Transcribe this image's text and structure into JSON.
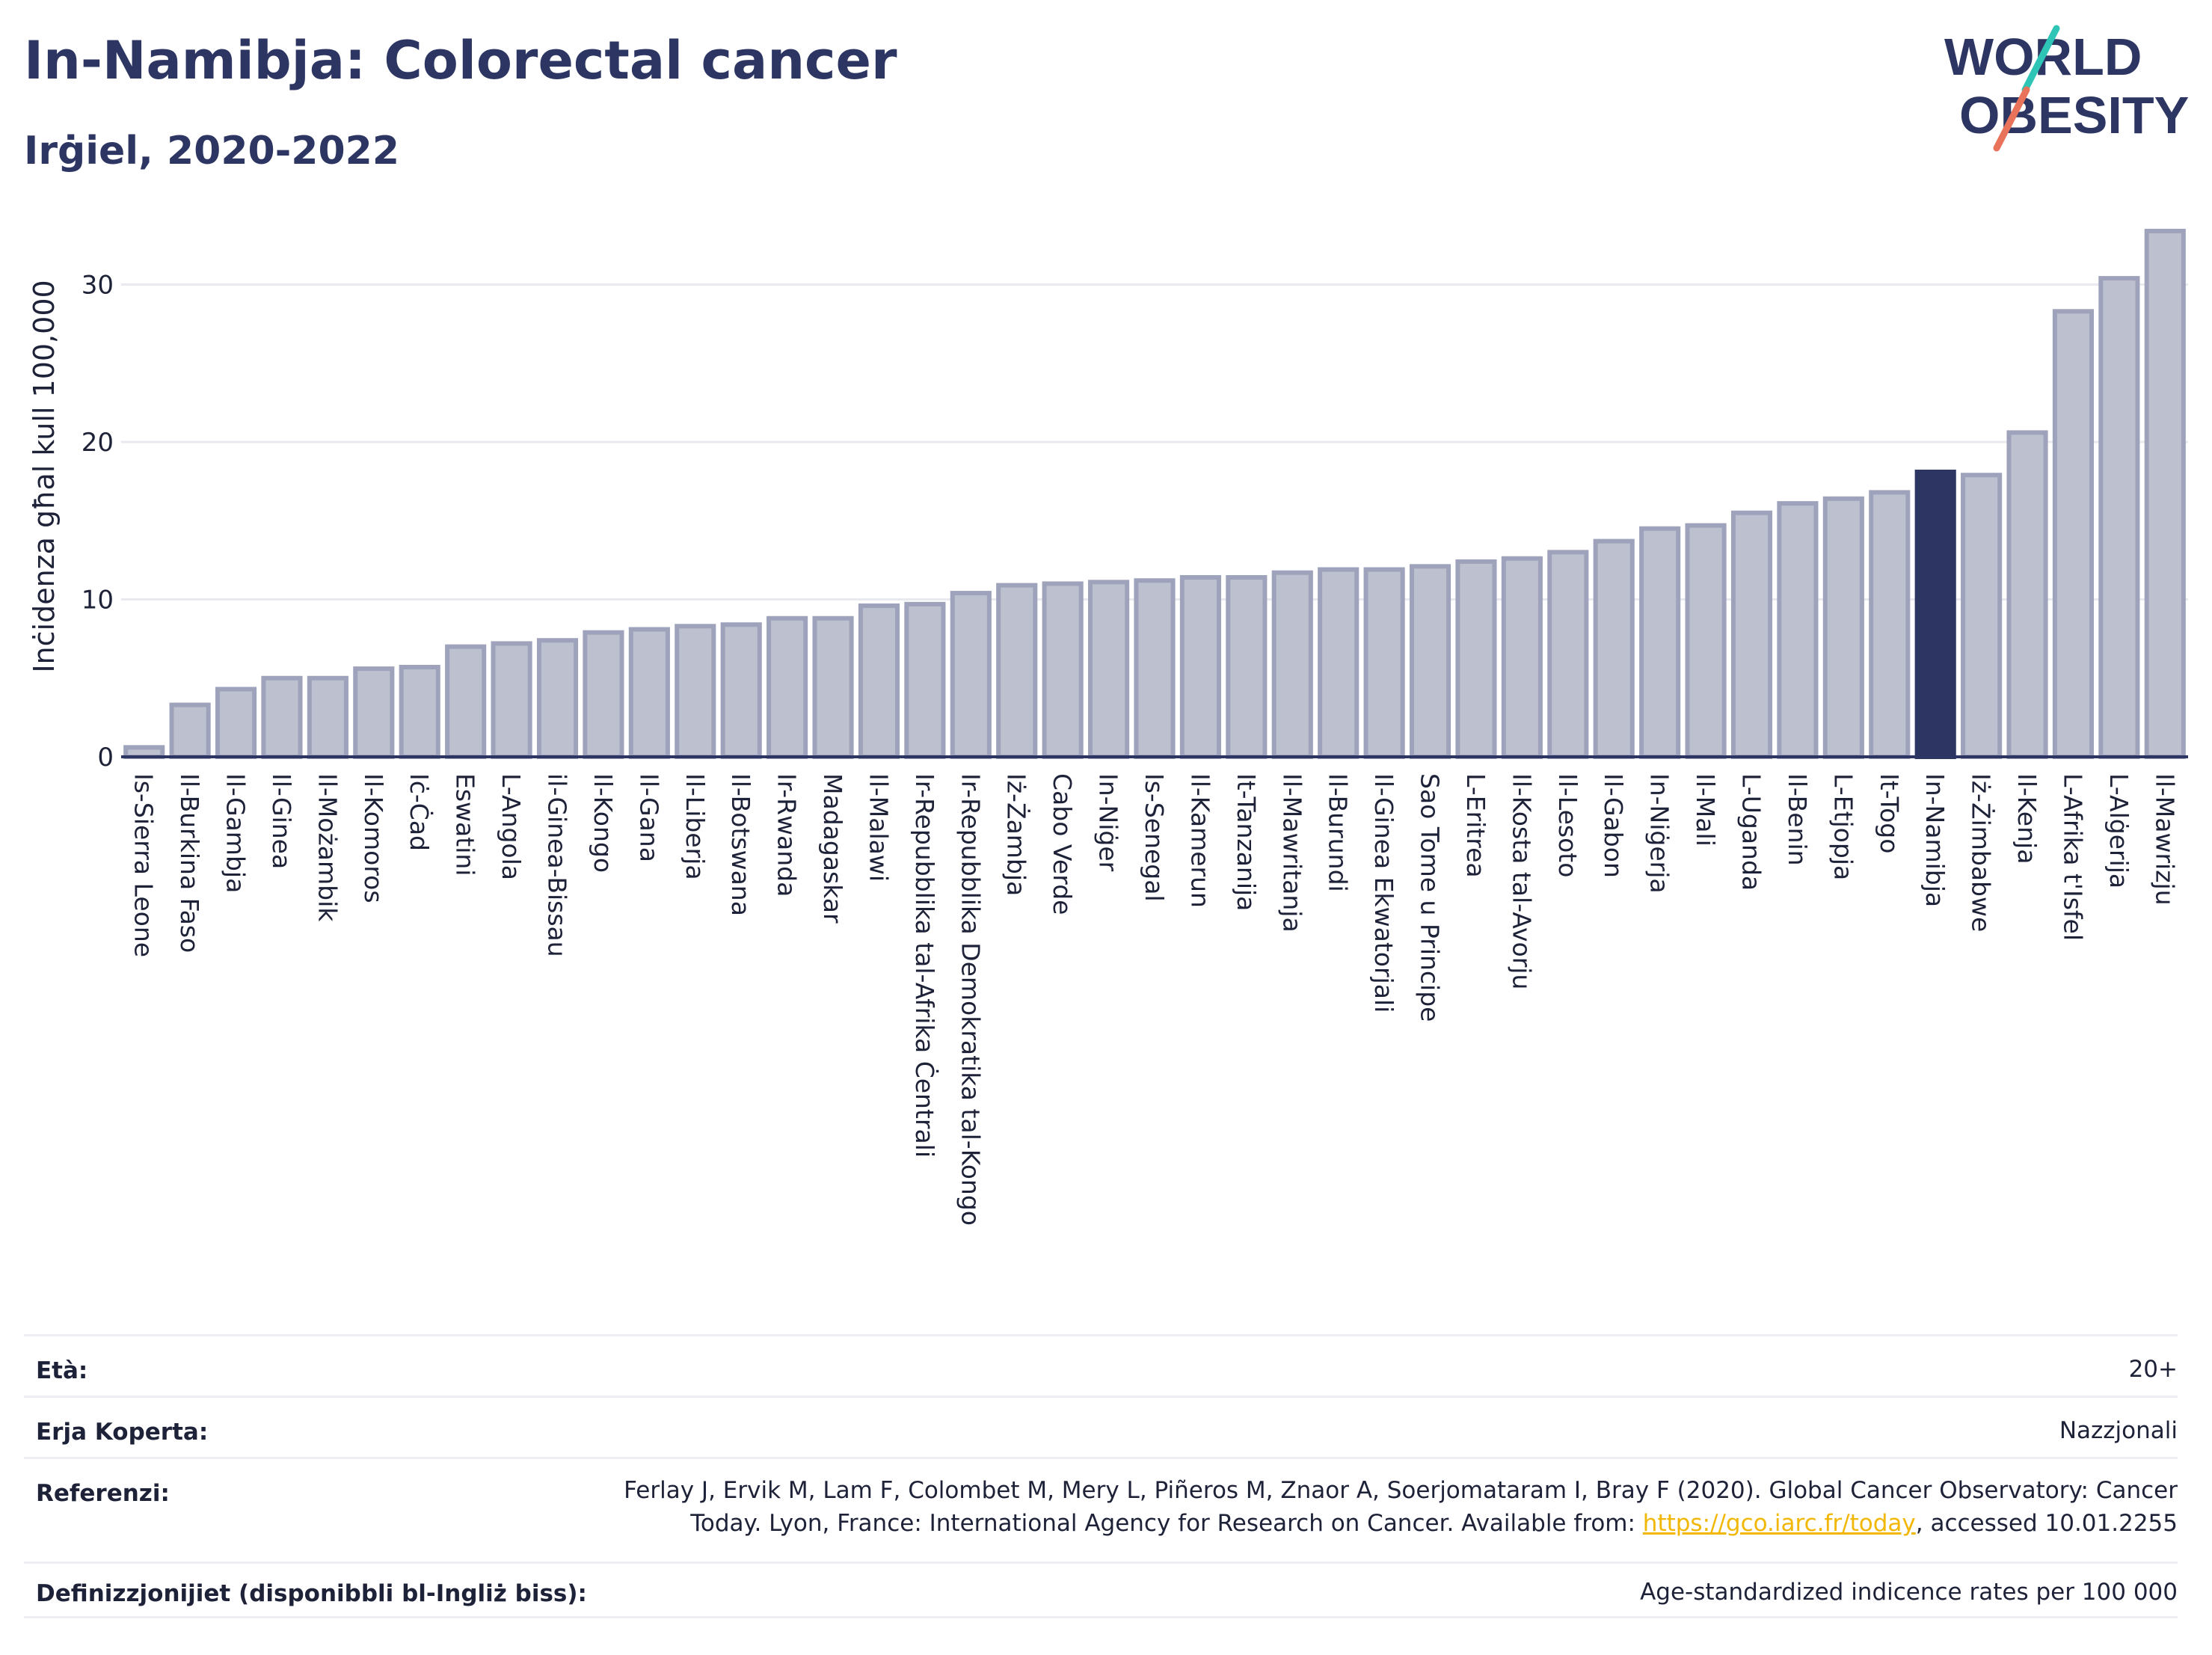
{
  "header": {
    "title": "In-Namibja: Colorectal cancer",
    "subtitle": "Irġiel, 2020-2022"
  },
  "logo": {
    "line1": "WORLD",
    "line2": "OBESITY"
  },
  "colors": {
    "bar": "#bcc0cf",
    "bar_border": "#9ea3bb",
    "highlight": "#2d3663",
    "text": "#2d3663"
  },
  "chart_data": {
    "type": "bar",
    "ylabel": "Inċidenza għal kull 100,000",
    "ylim": [
      0,
      34
    ],
    "yticks": [
      0,
      10,
      20,
      30
    ],
    "grid": true,
    "highlight_category": "In-Namibja",
    "categories": [
      "Is-Sierra Leone",
      "Il-Burkina Faso",
      "Il-Gambja",
      "Il-Ginea",
      "Il-Możambik",
      "Il-Komoros",
      "Iċ-Ċad",
      "Eswatini",
      "L-Angola",
      "il-Ginea-Bissau",
      "Il-Kongo",
      "Il-Gana",
      "Il-Liberja",
      "Il-Botswana",
      "Ir-Rwanda",
      "Madagaskar",
      "Il-Malawi",
      "Ir-Repubblika tal-Afrika Ċentrali",
      "Ir-Repubblika Demokratika tal-Kongo",
      "Iż-Żambja",
      "Cabo Verde",
      "In-Niġer",
      "Is-Senegal",
      "Il-Kamerun",
      "It-Tanzanija",
      "Il-Mawritanja",
      "Il-Burundi",
      "Il-Ginea Ekwatorjali",
      "Sao Tome u Principe",
      "L-Eritrea",
      "Il-Kosta tal-Avorju",
      "Il-Lesoto",
      "Il-Gabon",
      "In-Niġerja",
      "Il-Mali",
      "L-Uganda",
      "Il-Benin",
      "L-Etjopja",
      "It-Togo",
      "In-Namibja",
      "Iż-Żimbabwe",
      "Il-Kenja",
      "L-Afrika t'Isfel",
      "L-Alġerija",
      "Il-Mawrizju"
    ],
    "values": [
      0.6,
      3.3,
      4.3,
      5.0,
      5.0,
      5.6,
      5.7,
      7.0,
      7.2,
      7.4,
      7.9,
      8.1,
      8.3,
      8.4,
      8.8,
      8.8,
      9.6,
      9.7,
      10.4,
      10.9,
      11.0,
      11.1,
      11.2,
      11.4,
      11.4,
      11.7,
      11.9,
      11.9,
      12.1,
      12.4,
      12.6,
      13.0,
      13.7,
      14.5,
      14.7,
      15.5,
      16.1,
      16.4,
      16.8,
      18.1,
      17.9,
      20.6,
      28.3,
      30.4,
      33.4
    ]
  },
  "meta": {
    "age_label": "Età:",
    "age_value": "20+",
    "coverage_label": "Erja Koperta:",
    "coverage_value": "Nazzjonali",
    "references_label": "Referenzi:",
    "references_line1": "Ferlay J, Ervik M, Lam F, Colombet M, Mery L, Piñeros M, Znaor A, Soerjomataram I, Bray F (2020). Global Cancer Observatory: Cancer",
    "references_line2_prefix": "Today. Lyon, France: International Agency for Research on Cancer. Available from: ",
    "references_link": "https://gco.iarc.fr/today",
    "references_line2_suffix": ", accessed 10.01.2255",
    "definitions_label": "Definizzjonijiet (disponibbli bl-Ingliż biss):",
    "definitions_value": "Age-standardized indicence rates per 100 000"
  }
}
